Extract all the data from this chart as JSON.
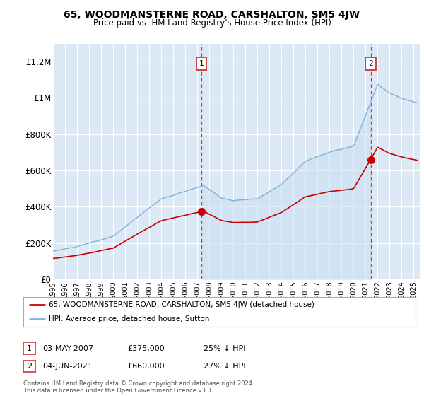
{
  "title": "65, WOODMANSTERNE ROAD, CARSHALTON, SM5 4JW",
  "subtitle": "Price paid vs. HM Land Registry's House Price Index (HPI)",
  "ylabel_ticks": [
    "£0",
    "£200K",
    "£400K",
    "£600K",
    "£800K",
    "£1M",
    "£1.2M"
  ],
  "ytick_values": [
    0,
    200000,
    400000,
    600000,
    800000,
    1000000,
    1200000
  ],
  "ylim": [
    0,
    1300000
  ],
  "xlim_start": 1995.0,
  "xlim_end": 2025.5,
  "background_color": "#dce9f5",
  "plot_bg_color": "#dce9f5",
  "grid_color": "#ffffff",
  "line_color_red": "#cc0000",
  "line_color_blue": "#7eb3d8",
  "fill_color_blue": "#dce9f5",
  "sale1_x": 2007.35,
  "sale1_y": 375000,
  "sale2_x": 2021.42,
  "sale2_y": 660000,
  "legend_label_red": "65, WOODMANSTERNE ROAD, CARSHALTON, SM5 4JW (detached house)",
  "legend_label_blue": "HPI: Average price, detached house, Sutton",
  "note1_date": "03-MAY-2007",
  "note1_price": "£375,000",
  "note1_hpi": "25% ↓ HPI",
  "note2_date": "04-JUN-2021",
  "note2_price": "£660,000",
  "note2_hpi": "27% ↓ HPI",
  "footer": "Contains HM Land Registry data © Crown copyright and database right 2024.\nThis data is licensed under the Open Government Licence v3.0."
}
